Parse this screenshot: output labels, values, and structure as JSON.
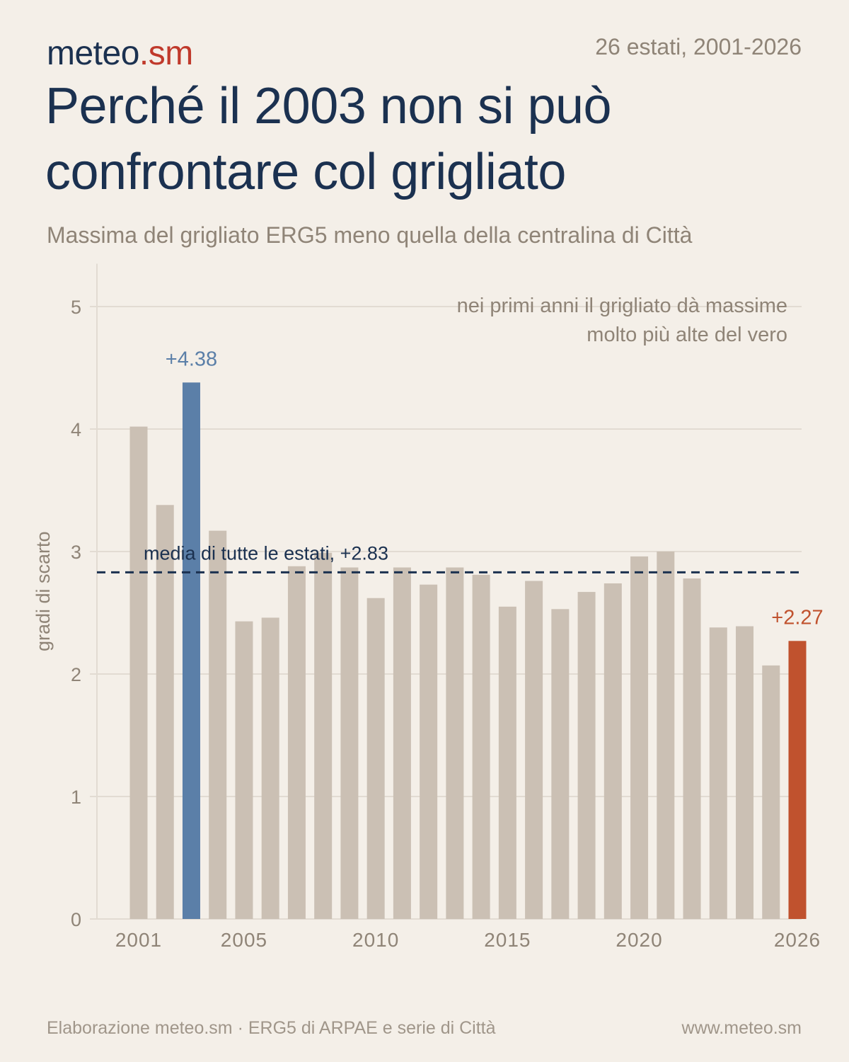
{
  "brand": {
    "name": "meteo",
    "tld": ".sm"
  },
  "range_label": "26 estati, 2001-2026",
  "title": "Perché il 2003 non si può confrontare col grigliato",
  "subtitle": "Massima del grigliato ERG5 meno quella della centralina di Città",
  "footer": {
    "source": "Elaborazione meteo.sm · ERG5 di ARPAE e serie di Città",
    "url": "www.meteo.sm"
  },
  "colors": {
    "bar": "#cbc0b4",
    "highlight_2003": "#5b7fa8",
    "highlight_2026": "#c0522e",
    "mean_line": "#1b3150",
    "grid": "#e2dbd2",
    "axis_text": "#8f8477"
  },
  "chart_data": {
    "type": "bar",
    "ylabel": "gradi di scarto",
    "xlabel": "",
    "ylim": [
      0,
      5.35
    ],
    "yticks": [
      0,
      1,
      2,
      3,
      4,
      5
    ],
    "xtick_labels": [
      "2001",
      "2005",
      "2010",
      "2015",
      "2020",
      "2026"
    ],
    "grid": true,
    "categories": [
      2001,
      2002,
      2003,
      2004,
      2005,
      2006,
      2007,
      2008,
      2009,
      2010,
      2011,
      2012,
      2013,
      2014,
      2015,
      2016,
      2017,
      2018,
      2019,
      2020,
      2021,
      2022,
      2023,
      2024,
      2025,
      2026
    ],
    "values": [
      4.02,
      3.38,
      4.38,
      3.17,
      2.43,
      2.46,
      2.88,
      2.99,
      2.87,
      2.62,
      2.87,
      2.73,
      2.87,
      2.81,
      2.55,
      2.76,
      2.53,
      2.67,
      2.74,
      2.96,
      3.0,
      2.78,
      2.38,
      2.39,
      2.07,
      2.27
    ],
    "highlights": [
      {
        "year": 2003,
        "label": "+4.38"
      },
      {
        "year": 2026,
        "label": "+2.27"
      }
    ],
    "mean": {
      "value": 2.83,
      "label": "media di tutte le estati, +2.83"
    },
    "annotation": [
      "nei primi anni il grigliato dà massime",
      "molto più alte del vero"
    ]
  }
}
